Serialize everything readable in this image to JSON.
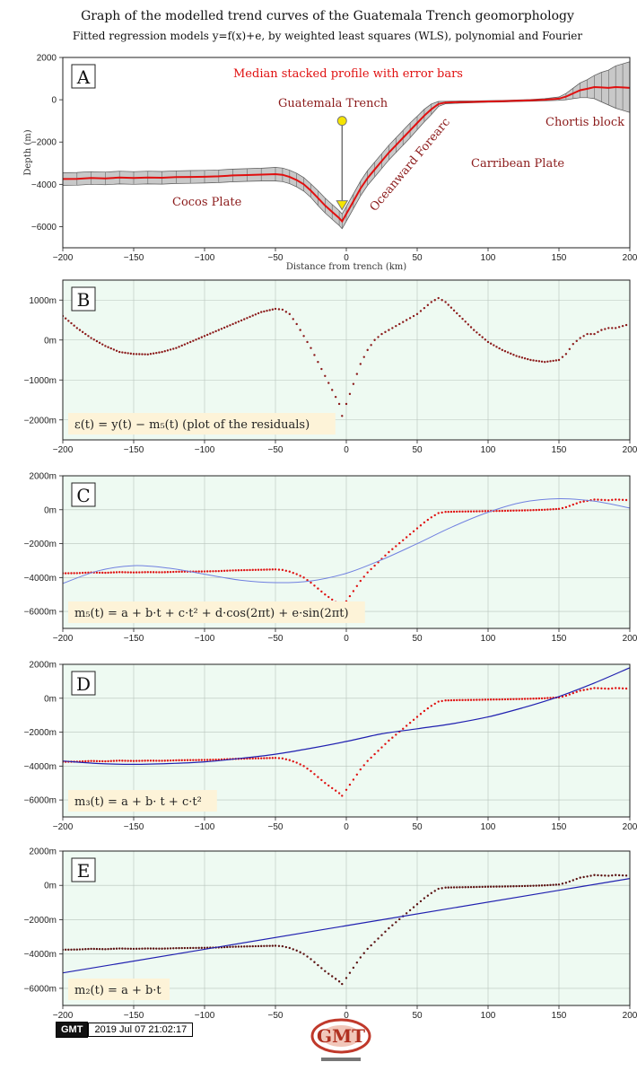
{
  "title": "Graph of the modelled trend curves of the Guatemala Trench geomorphology",
  "subtitle": "Fitted regression models y=f(x)+e, by weighted least squares (WLS), polynomial and Fourier",
  "colors": {
    "profile": "#e01010",
    "points": "#8b1a1a",
    "fit_light": "#7080e0",
    "fit_dark": "#2020b0",
    "panel_bg": "#eefaf2",
    "error_band": "#9a9a9a",
    "label_box": "#fdf3d8"
  },
  "panels": [
    {
      "id": "A",
      "letter": "A",
      "ylabel": "Depth (m)",
      "xlabel": "Distance from trench (km)",
      "annotations": {
        "median": "Median stacked profile with error bars",
        "trench": "Guatemala Trench",
        "chortis": "Chortis block",
        "forearc": "Oceanward Forearc",
        "carribean": "Carribean Plate",
        "cocos": "Cocos Plate"
      }
    },
    {
      "id": "B",
      "letter": "B",
      "formula": "ε(t) = y(t) − m₅(t) (plot of the residuals)"
    },
    {
      "id": "C",
      "letter": "C",
      "formula": "m₅(t) = a + b·t + c·t² + d·cos(2πt) + e·sin(2πt)"
    },
    {
      "id": "D",
      "letter": "D",
      "formula": "m₃(t) = a + b· t + c·t²"
    },
    {
      "id": "E",
      "letter": "E",
      "formula": "m₂(t) = a + b·t"
    }
  ],
  "chart_data": [
    {
      "panel": "A",
      "type": "area",
      "title": "Median stacked profile with error bars",
      "xlabel": "Distance from trench (km)",
      "ylabel": "Depth (m)",
      "xlim": [
        -200,
        200
      ],
      "ylim": [
        -7000,
        2000
      ],
      "xticks": [
        -200,
        -150,
        -100,
        -50,
        0,
        50,
        100,
        150,
        200
      ],
      "xtick_labels": [
        "−200",
        "−150",
        "−100",
        "−50",
        "0",
        "50",
        "100",
        "150",
        "200"
      ],
      "yticks": [
        -6000,
        -4000,
        -2000,
        0,
        2000
      ],
      "ytick_labels": [
        "−6000",
        "−4000",
        "−2000",
        "0",
        "2000"
      ],
      "grid": false,
      "x": [
        -200,
        -190,
        -180,
        -170,
        -160,
        -150,
        -140,
        -130,
        -120,
        -110,
        -100,
        -90,
        -80,
        -70,
        -60,
        -50,
        -45,
        -40,
        -35,
        -30,
        -25,
        -20,
        -15,
        -10,
        -5,
        -3,
        0,
        5,
        10,
        15,
        20,
        25,
        30,
        35,
        40,
        45,
        50,
        55,
        60,
        65,
        70,
        80,
        90,
        100,
        110,
        120,
        130,
        140,
        150,
        155,
        160,
        165,
        170,
        175,
        180,
        185,
        190,
        195,
        200
      ],
      "series": [
        {
          "values": [
            -3750,
            -3740,
            -3700,
            -3720,
            -3680,
            -3700,
            -3680,
            -3690,
            -3660,
            -3650,
            -3640,
            -3620,
            -3580,
            -3560,
            -3540,
            -3520,
            -3550,
            -3650,
            -3800,
            -4000,
            -4300,
            -4650,
            -5000,
            -5300,
            -5600,
            -5750,
            -5400,
            -4800,
            -4200,
            -3700,
            -3300,
            -2900,
            -2500,
            -2150,
            -1800,
            -1450,
            -1100,
            -750,
            -450,
            -200,
            -130,
            -110,
            -100,
            -80,
            -70,
            -50,
            -30,
            0,
            50,
            150,
            300,
            450,
            520,
            600,
            580,
            560,
            600,
            580,
            560
          ]
        },
        {
          "values": [
            -3450,
            -3440,
            -3400,
            -3420,
            -3380,
            -3400,
            -3380,
            -3390,
            -3360,
            -3350,
            -3340,
            -3320,
            -3280,
            -3260,
            -3240,
            -3200,
            -3230,
            -3330,
            -3480,
            -3680,
            -3980,
            -4300,
            -4650,
            -4950,
            -5250,
            -5400,
            -5050,
            -4450,
            -3850,
            -3350,
            -2950,
            -2550,
            -2150,
            -1800,
            -1450,
            -1100,
            -780,
            -450,
            -200,
            -80,
            -70,
            -60,
            -60,
            -40,
            -30,
            -10,
            10,
            50,
            130,
            300,
            550,
            800,
            950,
            1150,
            1300,
            1400,
            1600,
            1700,
            1800
          ]
        },
        {
          "values": [
            -4050,
            -4040,
            -4000,
            -4020,
            -3980,
            -4000,
            -3980,
            -3990,
            -3960,
            -3950,
            -3940,
            -3920,
            -3880,
            -3860,
            -3840,
            -3840,
            -3870,
            -3970,
            -4120,
            -4320,
            -4620,
            -5000,
            -5350,
            -5650,
            -5950,
            -6100,
            -5750,
            -5150,
            -4550,
            -4050,
            -3650,
            -3250,
            -2850,
            -2500,
            -2150,
            -1800,
            -1420,
            -1050,
            -700,
            -320,
            -190,
            -160,
            -140,
            -120,
            -110,
            -90,
            -70,
            -50,
            -30,
            0,
            50,
            100,
            100,
            50,
            -100,
            -250,
            -400,
            -500,
            -600
          ]
        }
      ],
      "marker": {
        "x": -3,
        "y_top": -1000,
        "y_bottom": -5200
      }
    },
    {
      "panel": "B",
      "type": "scatter",
      "xlim": [
        -200,
        200
      ],
      "ylim": [
        -2500,
        1500
      ],
      "xticks": [
        -200,
        -150,
        -100,
        -50,
        0,
        50,
        100,
        150,
        200
      ],
      "xtick_labels": [
        "−200",
        "−150",
        "−100",
        "−50",
        "0",
        "50",
        "100",
        "150",
        "200"
      ],
      "yticks": [
        -2000,
        -1000,
        0,
        1000
      ],
      "ytick_labels": [
        "−2000m",
        "−1000m",
        "0m",
        "1000m"
      ],
      "grid": true,
      "x": [
        -200,
        -190,
        -180,
        -170,
        -160,
        -150,
        -140,
        -130,
        -120,
        -110,
        -100,
        -90,
        -80,
        -70,
        -60,
        -50,
        -45,
        -40,
        -35,
        -30,
        -25,
        -20,
        -15,
        -10,
        -5,
        -3,
        0,
        5,
        10,
        15,
        20,
        25,
        30,
        35,
        40,
        45,
        50,
        55,
        60,
        65,
        70,
        80,
        90,
        100,
        110,
        120,
        130,
        140,
        150,
        155,
        160,
        165,
        170,
        175,
        180,
        185,
        190,
        195,
        200
      ],
      "series": [
        {
          "values": [
            600,
            300,
            50,
            -150,
            -300,
            -350,
            -360,
            -300,
            -200,
            -50,
            100,
            250,
            400,
            550,
            700,
            780,
            760,
            650,
            400,
            100,
            -200,
            -550,
            -900,
            -1250,
            -1600,
            -1900,
            -1600,
            -1100,
            -600,
            -250,
            0,
            150,
            250,
            350,
            450,
            550,
            650,
            800,
            950,
            1050,
            950,
            600,
            250,
            -50,
            -250,
            -400,
            -500,
            -550,
            -500,
            -350,
            -100,
            50,
            150,
            150,
            250,
            300,
            300,
            350,
            400
          ]
        }
      ]
    },
    {
      "panel": "C",
      "type": "line",
      "xlim": [
        -200,
        200
      ],
      "ylim": [
        -7000,
        2000
      ],
      "xticks": [
        -200,
        -150,
        -100,
        -50,
        0,
        50,
        100,
        150,
        200
      ],
      "xtick_labels": [
        "−200",
        "−150",
        "−100",
        "−50",
        "0",
        "50",
        "100",
        "150",
        "200"
      ],
      "yticks": [
        -6000,
        -4000,
        -2000,
        0,
        2000
      ],
      "ytick_labels": [
        "−6000m",
        "−4000m",
        "−2000m",
        "0m",
        "2000m"
      ],
      "grid": true,
      "x": [
        -200,
        -190,
        -180,
        -170,
        -160,
        -150,
        -140,
        -130,
        -120,
        -110,
        -100,
        -90,
        -80,
        -70,
        -60,
        -50,
        -45,
        -40,
        -35,
        -30,
        -25,
        -20,
        -15,
        -10,
        -5,
        -3,
        0,
        5,
        10,
        15,
        20,
        25,
        30,
        35,
        40,
        45,
        50,
        55,
        60,
        65,
        70,
        80,
        90,
        100,
        110,
        120,
        130,
        140,
        150,
        155,
        160,
        165,
        170,
        175,
        180,
        185,
        190,
        195,
        200
      ],
      "series": [
        {
          "values": [
            -3750,
            -3740,
            -3700,
            -3720,
            -3680,
            -3700,
            -3680,
            -3690,
            -3660,
            -3650,
            -3640,
            -3620,
            -3580,
            -3560,
            -3540,
            -3520,
            -3550,
            -3650,
            -3800,
            -4000,
            -4300,
            -4650,
            -5000,
            -5300,
            -5600,
            -5750,
            -5400,
            -4800,
            -4200,
            -3700,
            -3300,
            -2900,
            -2500,
            -2150,
            -1800,
            -1450,
            -1100,
            -750,
            -450,
            -200,
            -130,
            -110,
            -100,
            -80,
            -70,
            -50,
            -30,
            0,
            50,
            150,
            300,
            450,
            520,
            600,
            580,
            560,
            600,
            580,
            560
          ]
        },
        {
          "x": [
            -200,
            -175,
            -150,
            -125,
            -100,
            -75,
            -50,
            -25,
            0,
            25,
            50,
            75,
            100,
            125,
            150,
            175,
            200
          ],
          "values": [
            -4350,
            -3600,
            -3300,
            -3450,
            -3800,
            -4150,
            -4300,
            -4200,
            -3750,
            -2950,
            -2000,
            -1000,
            -150,
            450,
            650,
            500,
            100
          ]
        }
      ]
    },
    {
      "panel": "D",
      "type": "line",
      "xlim": [
        -200,
        200
      ],
      "ylim": [
        -7000,
        2000
      ],
      "xticks": [
        -200,
        -150,
        -100,
        -50,
        0,
        50,
        100,
        150,
        200
      ],
      "xtick_labels": [
        "−200",
        "−150",
        "−100",
        "−50",
        "0",
        "50",
        "100",
        "150",
        "200"
      ],
      "yticks": [
        -6000,
        -4000,
        -2000,
        0,
        2000
      ],
      "ytick_labels": [
        "−6000m",
        "−4000m",
        "−2000m",
        "0m",
        "2000m"
      ],
      "grid": true,
      "x": [
        -200,
        -190,
        -180,
        -170,
        -160,
        -150,
        -140,
        -130,
        -120,
        -110,
        -100,
        -90,
        -80,
        -70,
        -60,
        -50,
        -45,
        -40,
        -35,
        -30,
        -25,
        -20,
        -15,
        -10,
        -5,
        -3,
        0,
        5,
        10,
        15,
        20,
        25,
        30,
        35,
        40,
        45,
        50,
        55,
        60,
        65,
        70,
        80,
        90,
        100,
        110,
        120,
        130,
        140,
        150,
        155,
        160,
        165,
        170,
        175,
        180,
        185,
        190,
        195,
        200
      ],
      "series": [
        {
          "values": [
            -3750,
            -3740,
            -3700,
            -3720,
            -3680,
            -3700,
            -3680,
            -3690,
            -3660,
            -3650,
            -3640,
            -3620,
            -3580,
            -3560,
            -3540,
            -3520,
            -3550,
            -3650,
            -3800,
            -4000,
            -4300,
            -4650,
            -5000,
            -5300,
            -5600,
            -5750,
            -5400,
            -4800,
            -4200,
            -3700,
            -3300,
            -2900,
            -2500,
            -2150,
            -1800,
            -1450,
            -1100,
            -750,
            -450,
            -200,
            -130,
            -110,
            -100,
            -80,
            -70,
            -50,
            -30,
            0,
            50,
            150,
            300,
            450,
            520,
            600,
            580,
            560,
            600,
            580,
            560
          ]
        },
        {
          "x": [
            -200,
            -175,
            -150,
            -125,
            -100,
            -75,
            -50,
            -25,
            0,
            25,
            50,
            75,
            100,
            125,
            150,
            175,
            200
          ],
          "values": [
            -3700,
            -3850,
            -3900,
            -3850,
            -3750,
            -3550,
            -3300,
            -2950,
            -2550,
            -2100,
            -1800,
            -1500,
            -1100,
            -550,
            100,
            900,
            1800
          ]
        }
      ]
    },
    {
      "panel": "E",
      "type": "line",
      "xlim": [
        -200,
        200
      ],
      "ylim": [
        -7000,
        2000
      ],
      "xticks": [
        -200,
        -150,
        -100,
        -50,
        0,
        50,
        100,
        150,
        200
      ],
      "xtick_labels": [
        "−200",
        "−150",
        "−100",
        "−50",
        "0",
        "50",
        "100",
        "150",
        "200"
      ],
      "yticks": [
        -6000,
        -4000,
        -2000,
        0,
        2000
      ],
      "ytick_labels": [
        "−6000m",
        "−4000m",
        "−2000m",
        "0m",
        "2000m"
      ],
      "grid": true,
      "x": [
        -200,
        -190,
        -180,
        -170,
        -160,
        -150,
        -140,
        -130,
        -120,
        -110,
        -100,
        -90,
        -80,
        -70,
        -60,
        -50,
        -45,
        -40,
        -35,
        -30,
        -25,
        -20,
        -15,
        -10,
        -5,
        -3,
        0,
        5,
        10,
        15,
        20,
        25,
        30,
        35,
        40,
        45,
        50,
        55,
        60,
        65,
        70,
        80,
        90,
        100,
        110,
        120,
        130,
        140,
        150,
        155,
        160,
        165,
        170,
        175,
        180,
        185,
        190,
        195,
        200
      ],
      "series": [
        {
          "values": [
            -3750,
            -3740,
            -3700,
            -3720,
            -3680,
            -3700,
            -3680,
            -3690,
            -3660,
            -3650,
            -3640,
            -3620,
            -3580,
            -3560,
            -3540,
            -3520,
            -3550,
            -3650,
            -3800,
            -4000,
            -4300,
            -4650,
            -5000,
            -5300,
            -5600,
            -5750,
            -5400,
            -4800,
            -4200,
            -3700,
            -3300,
            -2900,
            -2500,
            -2150,
            -1800,
            -1450,
            -1100,
            -750,
            -450,
            -200,
            -130,
            -110,
            -100,
            -80,
            -70,
            -50,
            -30,
            0,
            50,
            150,
            300,
            450,
            520,
            600,
            580,
            560,
            600,
            580,
            560
          ]
        },
        {
          "x": [
            -200,
            200
          ],
          "values": [
            -5100,
            400
          ]
        }
      ]
    }
  ],
  "footer": {
    "gmt_label": "GMT",
    "timestamp": "2019 Jul 07 21:02:17",
    "logo_text": "GMT"
  }
}
